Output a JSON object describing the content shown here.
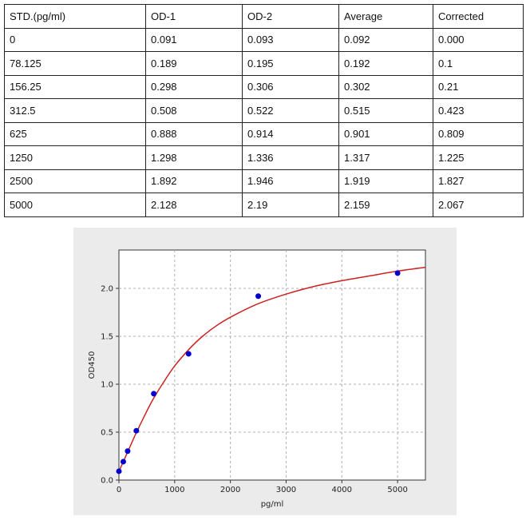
{
  "table": {
    "headers": [
      "STD.(pg/ml)",
      "OD-1",
      "OD-2",
      "Average",
      "Corrected"
    ],
    "rows": [
      [
        "0",
        "0.091",
        "0.093",
        "0.092",
        "0.000"
      ],
      [
        "78.125",
        "0.189",
        "0.195",
        "0.192",
        "0.1"
      ],
      [
        "156.25",
        "0.298",
        "0.306",
        "0.302",
        "0.21"
      ],
      [
        "312.5",
        "0.508",
        "0.522",
        "0.515",
        "0.423"
      ],
      [
        "625",
        "0.888",
        "0.914",
        "0.901",
        "0.809"
      ],
      [
        "1250",
        "1.298",
        "1.336",
        "1.317",
        "1.225"
      ],
      [
        "2500",
        "1.892",
        "1.946",
        "1.919",
        "1.827"
      ],
      [
        "5000",
        "2.128",
        "2.19",
        "2.159",
        "2.067"
      ]
    ]
  },
  "chart_data": {
    "type": "scatter",
    "title": "",
    "xlabel": "pg/ml",
    "ylabel": "OD450",
    "xlim": [
      0,
      5500
    ],
    "ylim": [
      0,
      2.4
    ],
    "x_ticks": [
      0,
      1000,
      2000,
      3000,
      4000,
      5000
    ],
    "y_ticks": [
      0.0,
      0.5,
      1.0,
      1.5,
      2.0
    ],
    "y_tick_labels": [
      "0.0",
      "0.5",
      "1.0",
      "1.5",
      "2.0"
    ],
    "grid": true,
    "series": [
      {
        "name": "",
        "kind": "points",
        "color": "#0000cc",
        "x": [
          0,
          78.125,
          156.25,
          312.5,
          625,
          1250,
          2500,
          5000
        ],
        "y": [
          0.092,
          0.192,
          0.302,
          0.515,
          0.901,
          1.317,
          1.919,
          2.159
        ]
      },
      {
        "name": "",
        "kind": "fit-curve",
        "color": "#cc2222",
        "x": [
          0,
          100,
          200,
          300,
          450,
          600,
          800,
          1000,
          1250,
          1500,
          1800,
          2100,
          2500,
          3000,
          3500,
          4000,
          4500,
          5000,
          5500
        ],
        "y": [
          0.09,
          0.22,
          0.35,
          0.48,
          0.66,
          0.83,
          1.02,
          1.19,
          1.36,
          1.5,
          1.63,
          1.73,
          1.84,
          1.94,
          2.02,
          2.08,
          2.13,
          2.18,
          2.22
        ]
      }
    ]
  }
}
